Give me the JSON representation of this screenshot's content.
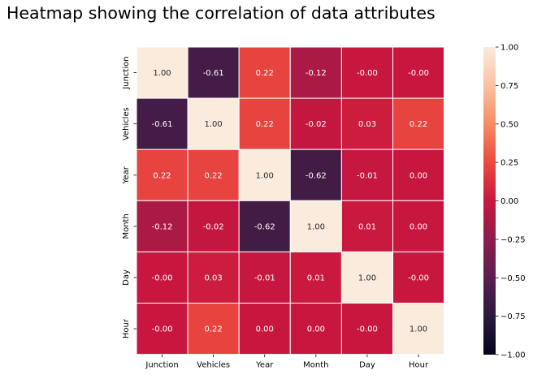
{
  "chart_data": {
    "type": "heatmap",
    "title": "Heatmap showing the correlation of data attributes",
    "xlabel": "",
    "ylabel": "",
    "x_categories": [
      "Junction",
      "Vehicles",
      "Year",
      "Month",
      "Day",
      "Hour"
    ],
    "y_categories": [
      "Junction",
      "Vehicles",
      "Year",
      "Month",
      "Day",
      "Hour"
    ],
    "values": [
      [
        1.0,
        -0.61,
        0.22,
        -0.12,
        -0.0,
        -0.0
      ],
      [
        -0.61,
        1.0,
        0.22,
        -0.02,
        0.03,
        0.22
      ],
      [
        0.22,
        0.22,
        1.0,
        -0.62,
        -0.01,
        0.0
      ],
      [
        -0.12,
        -0.02,
        -0.62,
        1.0,
        0.01,
        0.0
      ],
      [
        -0.0,
        0.03,
        -0.01,
        0.01,
        1.0,
        -0.0
      ],
      [
        -0.0,
        0.22,
        0.0,
        0.0,
        -0.0,
        1.0
      ]
    ],
    "cell_labels": [
      [
        "1.00",
        "-0.61",
        "0.22",
        "-0.12",
        "-0.00",
        "-0.00"
      ],
      [
        "-0.61",
        "1.00",
        "0.22",
        "-0.02",
        "0.03",
        "0.22"
      ],
      [
        "0.22",
        "0.22",
        "1.00",
        "-0.62",
        "-0.01",
        "0.00"
      ],
      [
        "-0.12",
        "-0.02",
        "-0.62",
        "1.00",
        "0.01",
        "0.00"
      ],
      [
        "-0.00",
        "0.03",
        "-0.01",
        "0.01",
        "1.00",
        "-0.00"
      ],
      [
        "-0.00",
        "0.22",
        "0.00",
        "0.00",
        "-0.00",
        "1.00"
      ]
    ],
    "vmin": -1.0,
    "vmax": 1.0,
    "colorbar_ticks": [
      1.0,
      0.75,
      0.5,
      0.25,
      0.0,
      -0.25,
      -0.5,
      -0.75,
      -1.0
    ],
    "colorbar_tick_labels": [
      "1.00",
      "0.75",
      "0.50",
      "0.25",
      "0.00",
      "−0.25",
      "−0.50",
      "−0.75",
      "−1.00"
    ],
    "colormap": "rocket",
    "colormap_stops": [
      "#03051a",
      "#2b1a3d",
      "#5a1e4f",
      "#8c1d4c",
      "#c8173f",
      "#eb4a40",
      "#f58c64",
      "#f9c2a2",
      "#faebdd"
    ],
    "cell_border_color": "#ffffff",
    "grid": false,
    "legend": "colorbar-right"
  }
}
